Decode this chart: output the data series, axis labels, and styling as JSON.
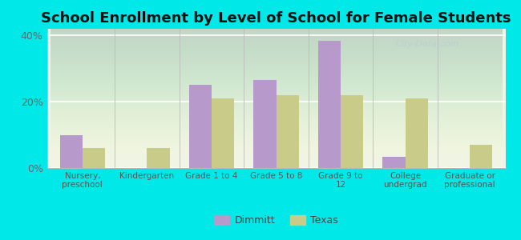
{
  "title": "School Enrollment by Level of School for Female Students",
  "categories": [
    "Nursery,\npreschool",
    "Kindergarten",
    "Grade 1 to 4",
    "Grade 5 to 8",
    "Grade 9 to\n12",
    "College\nundergrad",
    "Graduate or\nprofessional"
  ],
  "dimmitt_values": [
    10.0,
    0.0,
    25.0,
    26.5,
    38.5,
    3.5,
    0.0
  ],
  "texas_values": [
    6.0,
    6.0,
    21.0,
    22.0,
    22.0,
    21.0,
    7.0
  ],
  "dimmitt_color": "#b899cc",
  "texas_color": "#c8cc88",
  "background_color": "#00e8e8",
  "plot_bg_color": "#eef4e8",
  "yticks": [
    0,
    20,
    40
  ],
  "ytick_labels": [
    "0%",
    "20%",
    "40%"
  ],
  "ylim": [
    0,
    42
  ],
  "title_fontsize": 13,
  "legend_labels": [
    "Dimmitt",
    "Texas"
  ],
  "bar_width": 0.35,
  "watermark": "City-Data.com"
}
